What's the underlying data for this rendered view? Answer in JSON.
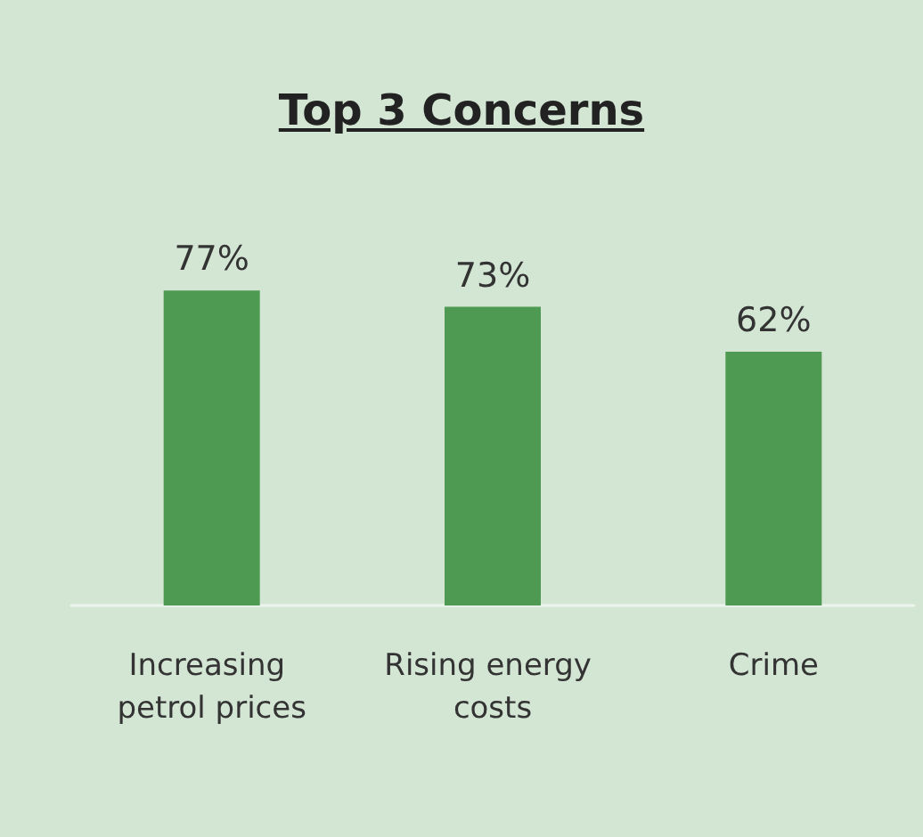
{
  "chart_data": {
    "type": "bar",
    "title": "Top 3 Concerns",
    "categories": [
      "Increasing petrol prices",
      "Rising energy costs",
      "Crime"
    ],
    "values": [
      77,
      73,
      62
    ],
    "value_labels": [
      "77%",
      "73%",
      "62%"
    ],
    "color": "#4e9a52",
    "grid": false
  }
}
